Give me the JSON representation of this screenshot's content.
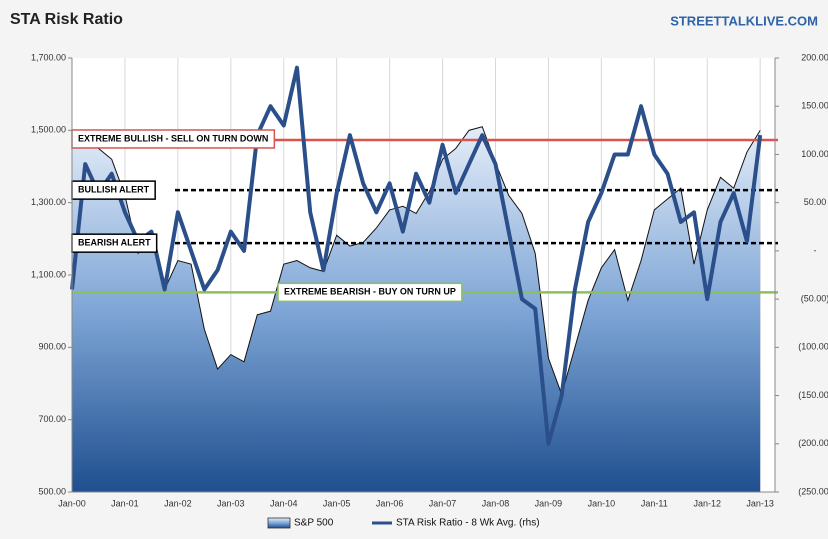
{
  "chart_data": {
    "type": "line",
    "title": "STA Risk Ratio",
    "subtitle": "STREETTALKLIVE.COM",
    "x": [
      2000,
      2000.25,
      2000.5,
      2000.75,
      2001,
      2001.25,
      2001.5,
      2001.75,
      2002,
      2002.25,
      2002.5,
      2002.75,
      2003,
      2003.25,
      2003.5,
      2003.75,
      2004,
      2004.25,
      2004.5,
      2004.75,
      2005,
      2005.25,
      2005.5,
      2005.75,
      2006,
      2006.25,
      2006.5,
      2006.75,
      2007,
      2007.25,
      2007.5,
      2007.75,
      2008,
      2008.25,
      2008.5,
      2008.75,
      2009,
      2009.25,
      2009.5,
      2009.75,
      2010,
      2010.25,
      2010.5,
      2010.75,
      2011,
      2011.25,
      2011.5,
      2011.75,
      2012,
      2012.25,
      2012.5,
      2012.75,
      2013
    ],
    "series": [
      {
        "name": "S&P 500",
        "color": "#1f4f8f",
        "kind": "area",
        "values": [
          1470,
          1500,
          1450,
          1420,
          1320,
          1160,
          1220,
          1060,
          1140,
          1130,
          950,
          840,
          880,
          860,
          990,
          1000,
          1130,
          1140,
          1120,
          1110,
          1210,
          1180,
          1190,
          1230,
          1280,
          1290,
          1270,
          1330,
          1420,
          1450,
          1500,
          1510,
          1410,
          1320,
          1270,
          1160,
          870,
          770,
          900,
          1030,
          1120,
          1170,
          1030,
          1140,
          1280,
          1310,
          1340,
          1130,
          1280,
          1370,
          1340,
          1440,
          1500
        ]
      },
      {
        "name": "STA Risk Ratio - 8 Wk Avg. (rhs)",
        "color": "#2b4f8a",
        "axis": "y2",
        "kind": "line",
        "values": [
          -40,
          90,
          60,
          80,
          40,
          10,
          20,
          -40,
          40,
          0,
          -40,
          -20,
          20,
          0,
          120,
          150,
          130,
          190,
          40,
          -20,
          60,
          120,
          70,
          40,
          70,
          20,
          80,
          50,
          110,
          60,
          90,
          120,
          90,
          20,
          -50,
          -60,
          -200,
          -150,
          -40,
          30,
          60,
          100,
          100,
          150,
          100,
          80,
          30,
          40,
          -50,
          30,
          60,
          10,
          120
        ]
      }
    ],
    "annotations": [
      {
        "text": "EXTREME BULLISH - SELL ON TURN DOWN",
        "value": 115,
        "color": "#d9534f"
      },
      {
        "text": "BULLISH ALERT",
        "value": 63,
        "color": "#000000"
      },
      {
        "text": "BEARISH ALERT",
        "value": 8,
        "color": "#000000"
      },
      {
        "text": "EXTREME BEARISH - BUY ON TURN UP",
        "value": -43,
        "color": "#8dc05a"
      }
    ],
    "xlim": [
      2000,
      2013.28
    ],
    "xticks": [
      {
        "value": 2000,
        "label": "Jan-00"
      },
      {
        "value": 2001,
        "label": "Jan-01"
      },
      {
        "value": 2002,
        "label": "Jan-02"
      },
      {
        "value": 2003,
        "label": "Jan-03"
      },
      {
        "value": 2004,
        "label": "Jan-04"
      },
      {
        "value": 2005,
        "label": "Jan-05"
      },
      {
        "value": 2006,
        "label": "Jan-06"
      },
      {
        "value": 2007,
        "label": "Jan-07"
      },
      {
        "value": 2008,
        "label": "Jan-08"
      },
      {
        "value": 2009,
        "label": "Jan-09"
      },
      {
        "value": 2010,
        "label": "Jan-10"
      },
      {
        "value": 2011,
        "label": "Jan-11"
      },
      {
        "value": 2012,
        "label": "Jan-12"
      },
      {
        "value": 2013,
        "label": "Jan-13"
      }
    ],
    "ylim": [
      500,
      1700
    ],
    "yticks": [
      {
        "value": 500,
        "label": "500.00"
      },
      {
        "value": 700,
        "label": "700.00"
      },
      {
        "value": 900,
        "label": "900.00"
      },
      {
        "value": 1100,
        "label": "1,100.00"
      },
      {
        "value": 1300,
        "label": "1,300.00"
      },
      {
        "value": 1500,
        "label": "1,500.00"
      },
      {
        "value": 1700,
        "label": "1,700.00"
      }
    ],
    "y2lim": [
      -250,
      200
    ],
    "y2ticks": [
      {
        "value": -250,
        "label": "(250.00)"
      },
      {
        "value": -200,
        "label": "(200.00)"
      },
      {
        "value": -150,
        "label": "(150.00)"
      },
      {
        "value": -100,
        "label": "(100.00)"
      },
      {
        "value": -50,
        "label": "(50.00)"
      },
      {
        "value": 0,
        "label": "-"
      },
      {
        "value": 50,
        "label": "50.00"
      },
      {
        "value": 100,
        "label": "100.00"
      },
      {
        "value": 150,
        "label": "150.00"
      },
      {
        "value": 200,
        "label": "200.00"
      }
    ],
    "grid": "x"
  }
}
